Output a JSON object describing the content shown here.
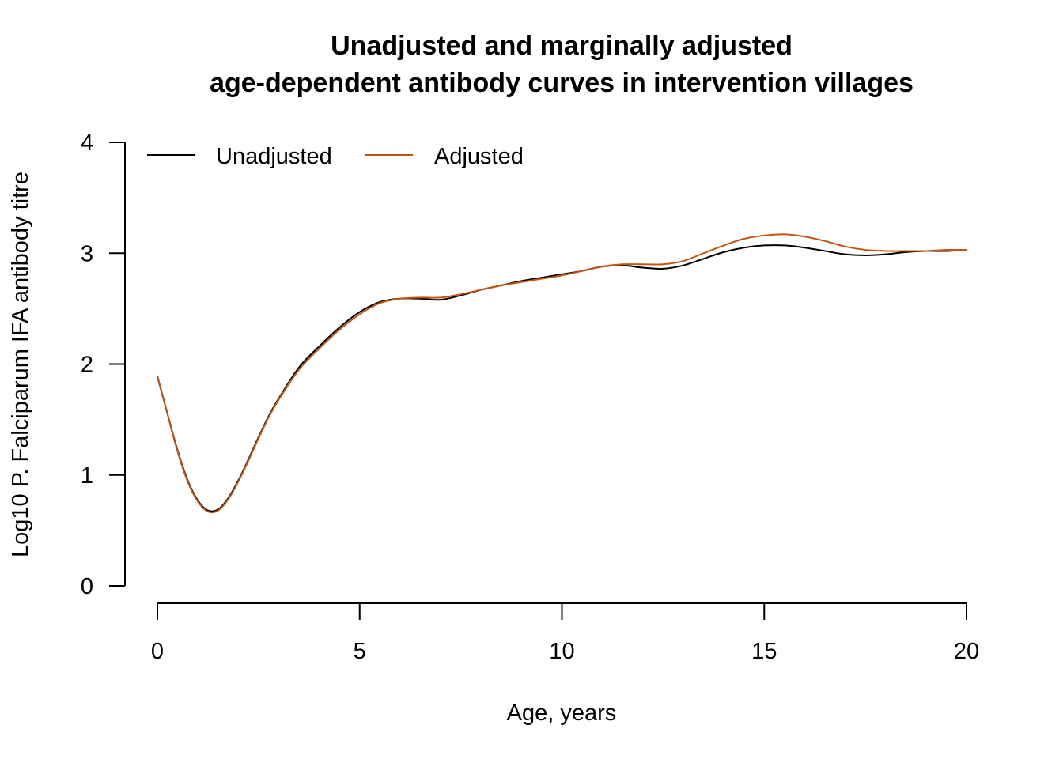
{
  "chart_data": {
    "type": "line",
    "title": [
      "Unadjusted and marginally adjusted",
      "age-dependent antibody curves in intervention villages"
    ],
    "xlabel": "Age, years",
    "ylabel": "Log10 P. Falciparum IFA antibody titre",
    "xlim": [
      0,
      20
    ],
    "ylim": [
      0,
      4
    ],
    "xticks": [
      0,
      5,
      10,
      15,
      20
    ],
    "yticks": [
      0,
      1,
      2,
      3,
      4
    ],
    "grid": false,
    "legend": "top-left",
    "series": [
      {
        "name": "Unadjusted",
        "color": "#000000",
        "x": [
          0,
          0.25,
          0.5,
          0.75,
          1.0,
          1.25,
          1.5,
          1.75,
          2.0,
          2.25,
          2.5,
          2.75,
          3.0,
          3.5,
          4.0,
          4.5,
          5.0,
          5.5,
          6.0,
          6.5,
          7.0,
          7.5,
          8.0,
          8.5,
          9.0,
          9.5,
          10.0,
          10.5,
          11.0,
          11.5,
          12.0,
          12.5,
          13.0,
          13.5,
          14.0,
          14.5,
          15.0,
          15.5,
          16.0,
          16.5,
          17.0,
          17.5,
          18.0,
          18.5,
          19.0,
          19.5,
          20.0
        ],
        "values": [
          1.89,
          1.55,
          1.22,
          0.95,
          0.77,
          0.68,
          0.69,
          0.79,
          0.95,
          1.14,
          1.34,
          1.53,
          1.69,
          1.97,
          2.16,
          2.33,
          2.47,
          2.56,
          2.59,
          2.59,
          2.58,
          2.62,
          2.67,
          2.71,
          2.75,
          2.78,
          2.81,
          2.84,
          2.88,
          2.89,
          2.87,
          2.86,
          2.89,
          2.95,
          3.01,
          3.05,
          3.07,
          3.07,
          3.05,
          3.02,
          2.99,
          2.98,
          2.99,
          3.01,
          3.02,
          3.02,
          3.03
        ]
      },
      {
        "name": "Adjusted",
        "color": "#C4540F",
        "x": [
          0,
          0.25,
          0.5,
          0.75,
          1.0,
          1.25,
          1.5,
          1.75,
          2.0,
          2.25,
          2.5,
          2.75,
          3.0,
          3.5,
          4.0,
          4.5,
          5.0,
          5.5,
          6.0,
          6.5,
          7.0,
          7.5,
          8.0,
          8.5,
          9.0,
          9.5,
          10.0,
          10.5,
          11.0,
          11.5,
          12.0,
          12.5,
          13.0,
          13.5,
          14.0,
          14.5,
          15.0,
          15.5,
          16.0,
          16.5,
          17.0,
          17.5,
          18.0,
          18.5,
          19.0,
          19.5,
          20.0
        ],
        "values": [
          1.89,
          1.55,
          1.21,
          0.94,
          0.76,
          0.67,
          0.68,
          0.78,
          0.94,
          1.13,
          1.33,
          1.52,
          1.68,
          1.95,
          2.14,
          2.31,
          2.45,
          2.55,
          2.59,
          2.6,
          2.6,
          2.63,
          2.67,
          2.71,
          2.74,
          2.77,
          2.8,
          2.84,
          2.88,
          2.9,
          2.9,
          2.9,
          2.93,
          3.0,
          3.07,
          3.13,
          3.16,
          3.17,
          3.15,
          3.11,
          3.06,
          3.03,
          3.02,
          3.02,
          3.02,
          3.03,
          3.03
        ]
      }
    ]
  }
}
